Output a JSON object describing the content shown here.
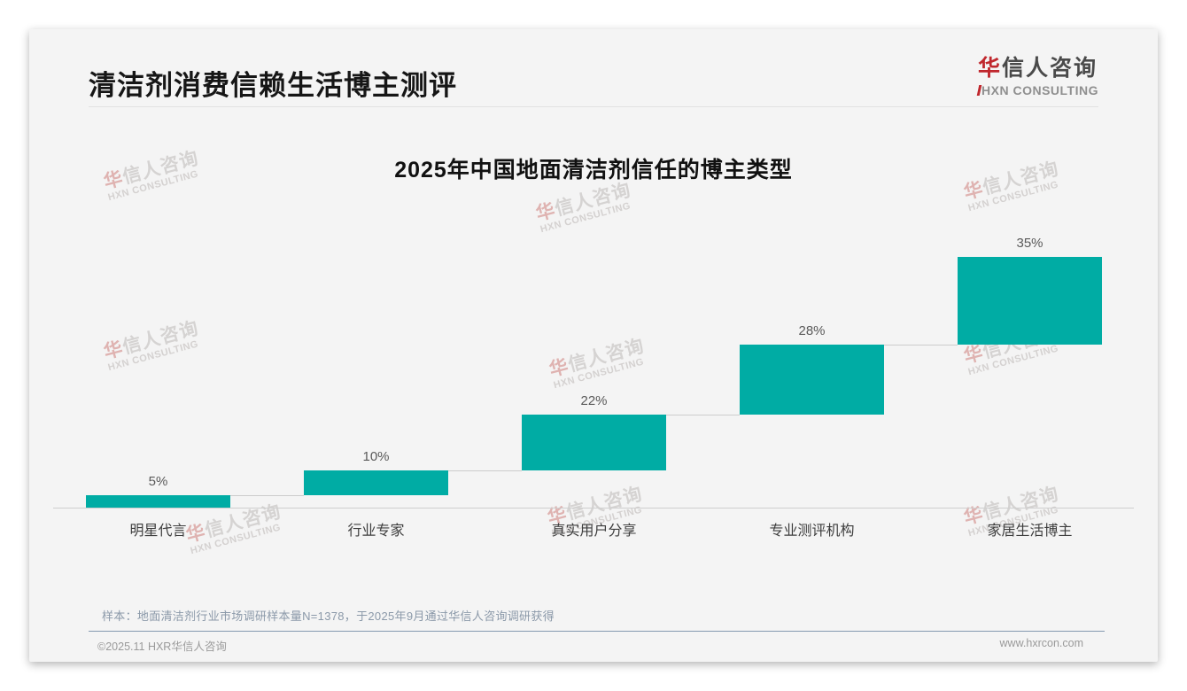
{
  "header": {
    "title": "清洁剂消费信赖生活博主测评"
  },
  "logo": {
    "cn_first": "华",
    "cn_rest": "信人咨询",
    "en": "HXN CONSULTING"
  },
  "watermark": {
    "cn_first": "华",
    "cn_rest": "信人咨询",
    "en": "HXN CONSULTING"
  },
  "chart_data": {
    "type": "bar",
    "subtype": "stair-waterfall",
    "title": "2025年中国地面清洁剂信任的博主类型",
    "categories": [
      "明星代言",
      "行业专家",
      "真实用户分享",
      "专业测评机构",
      "家居生活博主"
    ],
    "values": [
      5,
      10,
      22,
      28,
      35
    ],
    "value_labels": [
      "5%",
      "10%",
      "22%",
      "28%",
      "35%"
    ],
    "cumulative_starts": [
      0,
      5,
      15,
      37,
      65
    ],
    "unit": "%",
    "ylim": [
      0,
      100
    ],
    "bar_color": "#00ACA4",
    "grid": false,
    "legend": false
  },
  "footnote": {
    "text": "样本：地面清洁剂行业市场调研样本量N=1378，于2025年9月通过华信人咨询调研获得"
  },
  "footer": {
    "left": "©2025.11 HXR华信人咨询",
    "right": "www.hxrcon.com"
  }
}
